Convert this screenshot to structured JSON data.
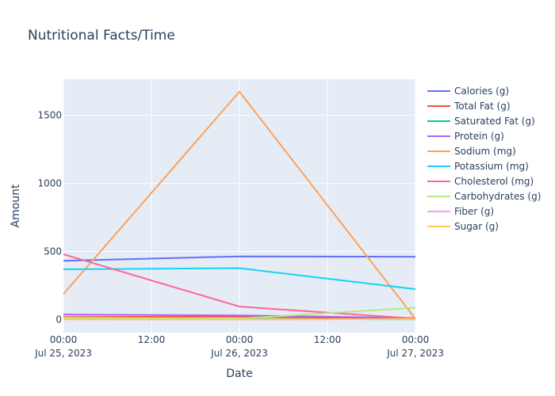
{
  "chart_data": {
    "type": "line",
    "title": "Nutritional Facts/Time",
    "xlabel": "Date",
    "ylabel": "Amount",
    "x": [
      "2023-07-25 00:00",
      "2023-07-26 00:00",
      "2023-07-27 00:00"
    ],
    "x_ticks": [
      {
        "value": "2023-07-25 00:00",
        "line1": "00:00",
        "line2": "Jul 25, 2023"
      },
      {
        "value": "2023-07-25 12:00",
        "line1": "12:00",
        "line2": ""
      },
      {
        "value": "2023-07-26 00:00",
        "line1": "00:00",
        "line2": "Jul 26, 2023"
      },
      {
        "value": "2023-07-26 12:00",
        "line1": "12:00",
        "line2": ""
      },
      {
        "value": "2023-07-27 00:00",
        "line1": "00:00",
        "line2": "Jul 27, 2023"
      }
    ],
    "y_ticks": [
      0,
      500,
      1000,
      1500
    ],
    "ylim": [
      -95,
      1765
    ],
    "grid": true,
    "legend_position": "right",
    "background": "#e5ecf6",
    "series": [
      {
        "name": "Calories (g)",
        "color": "#636efa",
        "values": [
          432,
          465,
          462
        ]
      },
      {
        "name": "Total Fat (g)",
        "color": "#ef553b",
        "values": [
          20,
          23,
          6
        ]
      },
      {
        "name": "Saturated Fat (g)",
        "color": "#00cc96",
        "values": [
          9,
          6,
          2
        ]
      },
      {
        "name": "Protein (g)",
        "color": "#ab63fa",
        "values": [
          38,
          32,
          12
        ]
      },
      {
        "name": "Sodium (mg)",
        "color": "#ffa15a",
        "values": [
          188,
          1674,
          6
        ]
      },
      {
        "name": "Potassium (mg)",
        "color": "#19d3f3",
        "values": [
          370,
          378,
          224
        ]
      },
      {
        "name": "Cholesterol (mg)",
        "color": "#ff6692",
        "values": [
          480,
          96,
          8
        ]
      },
      {
        "name": "Carbohydrates (g)",
        "color": "#b6e880",
        "values": [
          15,
          8,
          88
        ]
      },
      {
        "name": "Fiber (g)",
        "color": "#ff97ff",
        "values": [
          2,
          1,
          4
        ]
      },
      {
        "name": "Sugar (g)",
        "color": "#fecb52",
        "values": [
          3,
          2,
          5
        ]
      }
    ]
  }
}
